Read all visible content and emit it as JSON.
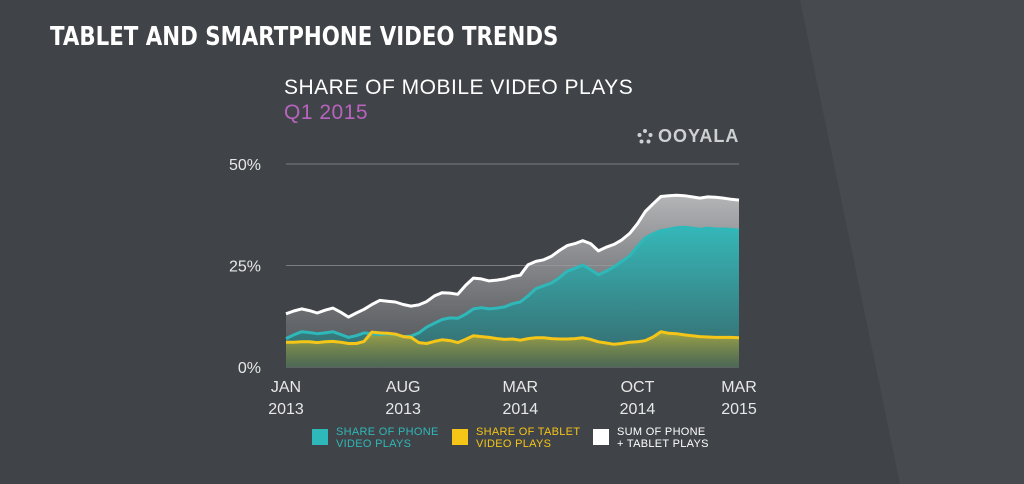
{
  "page_title": "TABLET AND SMARTPHONE VIDEO TRENDS",
  "brand": {
    "name": "OOYALA",
    "icon": "ooyala-dots-logo-icon"
  },
  "colors": {
    "background": "#404347",
    "phone": "#2fb8b9",
    "tablet": "#f5c518",
    "sum": "#ffffff",
    "subtitle": "#b864bf",
    "axis_text": "#e8e8e8",
    "gridline": "#7a7d82"
  },
  "chart_data": {
    "type": "area",
    "title": "SHARE OF MOBILE VIDEO PLAYS",
    "subtitle": "Q1 2015",
    "y_ticks": [
      "50%",
      "25%",
      "0%"
    ],
    "ylim": [
      0,
      50
    ],
    "y_tick_values": [
      50,
      25,
      0
    ],
    "grid": true,
    "x_ticks": [
      {
        "month": "JAN",
        "year": "2013",
        "label": "JAN\n2013"
      },
      {
        "month": "AUG",
        "year": "2013",
        "label": "AUG\n2013"
      },
      {
        "month": "MAR",
        "year": "2014",
        "label": "MAR\n2014"
      },
      {
        "month": "OCT",
        "year": "2014",
        "label": "OCT\n2014"
      },
      {
        "month": "MAR",
        "year": "2015",
        "label": "MAR\n2015"
      }
    ],
    "x_tick_positions": [
      0,
      15,
      30,
      45,
      58
    ],
    "series": [
      {
        "name": "SHARE OF PHONE VIDEO PLAYS",
        "legend": "SHARE OF PHONE\nVIDEO PLAYS",
        "color": "#2fb8b9",
        "values": [
          7.0,
          7.9,
          8.7,
          8.5,
          8.2,
          8.4,
          8.7,
          8.0,
          7.3,
          7.7,
          8.4,
          8.2,
          8.0,
          8.2,
          8.0,
          7.5,
          7.6,
          8.4,
          9.8,
          10.8,
          11.7,
          12.1,
          12.0,
          13.0,
          14.3,
          14.6,
          14.3,
          14.5,
          14.8,
          15.6,
          16.0,
          17.5,
          19.3,
          20.0,
          20.7,
          22.0,
          23.6,
          24.3,
          25.1,
          24.0,
          22.7,
          23.6,
          24.7,
          26.0,
          27.4,
          29.7,
          31.8,
          32.8,
          33.6,
          33.9,
          34.3,
          34.4,
          34.2,
          33.9,
          34.2,
          34.0,
          34.0,
          33.9,
          33.7
        ]
      },
      {
        "name": "SHARE OF TABLET VIDEO PLAYS",
        "legend": "SHARE OF TABLET\nVIDEO PLAYS",
        "color": "#f5c518",
        "values": [
          6.1,
          6.1,
          6.2,
          6.2,
          6.0,
          6.2,
          6.3,
          6.1,
          5.8,
          5.8,
          6.3,
          8.6,
          8.4,
          8.3,
          8.1,
          7.5,
          7.3,
          6.0,
          5.8,
          6.3,
          6.7,
          6.5,
          6.0,
          6.8,
          7.7,
          7.5,
          7.3,
          7.0,
          6.8,
          6.9,
          6.6,
          7.0,
          7.2,
          7.2,
          7.0,
          6.9,
          6.9,
          7.0,
          7.2,
          6.8,
          6.2,
          5.9,
          5.6,
          5.8,
          6.1,
          6.2,
          6.5,
          7.4,
          8.7,
          8.3,
          8.2,
          7.9,
          7.7,
          7.5,
          7.4,
          7.3,
          7.3,
          7.3,
          7.2
        ]
      },
      {
        "name": "SUM OF PHONE + TABLET PLAYS",
        "legend": "SUM OF PHONE\n+ TABLET PLAYS",
        "color": "#ffffff",
        "values": [
          13.1,
          13.8,
          14.3,
          13.9,
          13.3,
          14.0,
          14.5,
          13.5,
          12.3,
          13.3,
          14.2,
          15.4,
          16.4,
          16.2,
          16.0,
          15.4,
          15.0,
          15.3,
          16.1,
          17.5,
          18.3,
          18.2,
          17.9,
          20.1,
          21.9,
          21.7,
          21.2,
          21.4,
          21.7,
          22.3,
          22.6,
          25.2,
          26.0,
          26.4,
          27.3,
          28.7,
          29.9,
          30.4,
          31.1,
          30.4,
          28.6,
          29.5,
          30.2,
          31.3,
          32.9,
          35.3,
          38.3,
          40.2,
          42.0,
          42.2,
          42.3,
          42.2,
          41.9,
          41.6,
          41.9,
          41.8,
          41.6,
          41.3,
          41.1
        ]
      }
    ]
  }
}
